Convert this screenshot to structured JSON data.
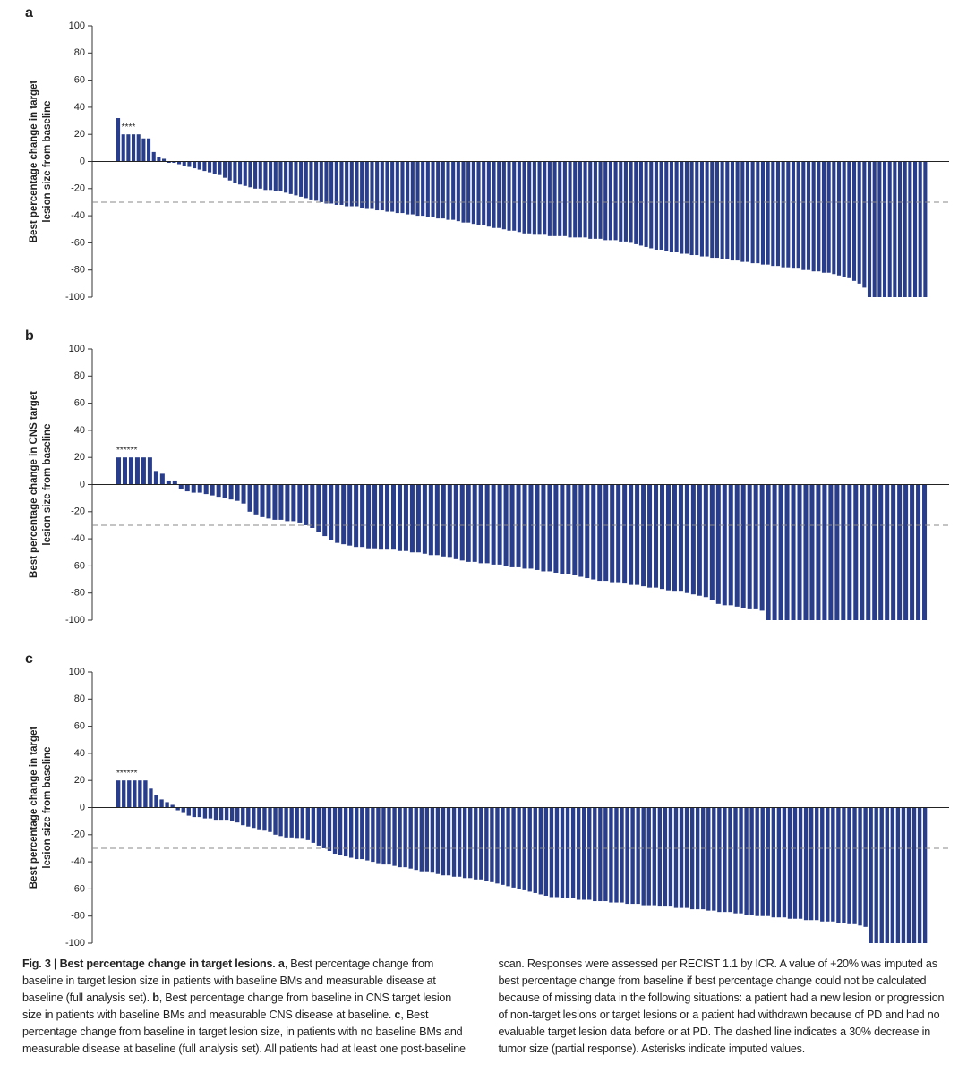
{
  "chart_data": [
    {
      "type": "bar",
      "panel": "a",
      "ylabel": [
        "Best percentage change in target",
        "lesion size from baseline"
      ],
      "annotation": "****",
      "color": "#283d8b",
      "ylim": [
        -100,
        100
      ],
      "yticks": [
        100,
        80,
        60,
        40,
        20,
        0,
        -20,
        -40,
        -60,
        -80,
        -100
      ],
      "reference_line": -30,
      "values": [
        32,
        20,
        20,
        20,
        20,
        17,
        17,
        7,
        3,
        2,
        -1,
        -1,
        -2,
        -3,
        -4,
        -5,
        -6,
        -7,
        -8,
        -9,
        -10,
        -12,
        -14,
        -16,
        -17,
        -18,
        -19,
        -20,
        -20,
        -21,
        -21,
        -22,
        -22,
        -23,
        -24,
        -25,
        -26,
        -27,
        -28,
        -29,
        -30,
        -31,
        -31,
        -32,
        -32,
        -33,
        -33,
        -33,
        -34,
        -35,
        -35,
        -36,
        -36,
        -37,
        -37,
        -38,
        -38,
        -39,
        -39,
        -40,
        -40,
        -41,
        -41,
        -42,
        -42,
        -43,
        -43,
        -44,
        -45,
        -45,
        -46,
        -47,
        -47,
        -48,
        -49,
        -49,
        -50,
        -51,
        -51,
        -52,
        -53,
        -53,
        -54,
        -54,
        -54,
        -55,
        -55,
        -55,
        -55,
        -56,
        -56,
        -56,
        -56,
        -57,
        -57,
        -57,
        -58,
        -58,
        -58,
        -59,
        -59,
        -60,
        -61,
        -62,
        -63,
        -64,
        -65,
        -65,
        -66,
        -67,
        -67,
        -68,
        -68,
        -69,
        -69,
        -70,
        -70,
        -71,
        -71,
        -72,
        -72,
        -73,
        -73,
        -74,
        -74,
        -75,
        -75,
        -76,
        -76,
        -77,
        -77,
        -78,
        -78,
        -79,
        -79,
        -80,
        -80,
        -81,
        -81,
        -82,
        -82,
        -83,
        -84,
        -85,
        -86,
        -88,
        -90,
        -93,
        -100,
        -100,
        -100,
        -100,
        -100,
        -100,
        -100,
        -100,
        -100,
        -100,
        -100,
        -100
      ]
    },
    {
      "type": "bar",
      "panel": "b",
      "ylabel": [
        "Best percentage change in CNS target",
        "lesion size from baseline"
      ],
      "annotation": "******",
      "color": "#283d8b",
      "ylim": [
        -100,
        100
      ],
      "yticks": [
        100,
        80,
        60,
        40,
        20,
        0,
        -20,
        -40,
        -60,
        -80,
        -100
      ],
      "reference_line": -30,
      "values": [
        20,
        20,
        20,
        20,
        20,
        20,
        10,
        8,
        3,
        3,
        -3,
        -5,
        -6,
        -6,
        -7,
        -8,
        -9,
        -10,
        -11,
        -12,
        -14,
        -20,
        -22,
        -24,
        -25,
        -26,
        -26,
        -27,
        -27,
        -28,
        -30,
        -32,
        -35,
        -38,
        -41,
        -43,
        -44,
        -45,
        -46,
        -46,
        -47,
        -47,
        -48,
        -48,
        -48,
        -49,
        -49,
        -50,
        -50,
        -51,
        -52,
        -52,
        -53,
        -54,
        -55,
        -56,
        -57,
        -57,
        -58,
        -58,
        -59,
        -59,
        -60,
        -61,
        -61,
        -62,
        -62,
        -63,
        -64,
        -64,
        -65,
        -66,
        -66,
        -67,
        -68,
        -69,
        -70,
        -71,
        -71,
        -72,
        -72,
        -73,
        -74,
        -74,
        -75,
        -76,
        -76,
        -77,
        -78,
        -79,
        -79,
        -80,
        -81,
        -82,
        -83,
        -85,
        -88,
        -89,
        -89,
        -90,
        -91,
        -92,
        -92,
        -93,
        -100,
        -100,
        -100,
        -100,
        -100,
        -100,
        -100,
        -100,
        -100,
        -100,
        -100,
        -100,
        -100,
        -100,
        -100,
        -100,
        -100,
        -100,
        -100,
        -100,
        -100,
        -100,
        -100,
        -100,
        -100,
        -100
      ]
    },
    {
      "type": "bar",
      "panel": "c",
      "ylabel": [
        "Best percentage change in target",
        "lesion size from baseline"
      ],
      "annotation": "******",
      "color": "#283d8b",
      "ylim": [
        -100,
        100
      ],
      "yticks": [
        100,
        80,
        60,
        40,
        20,
        0,
        -20,
        -40,
        -60,
        -80,
        -100
      ],
      "reference_line": -30,
      "values": [
        20,
        20,
        20,
        20,
        20,
        20,
        14,
        9,
        6,
        4,
        2,
        -2,
        -4,
        -6,
        -7,
        -7,
        -8,
        -8,
        -9,
        -9,
        -9,
        -10,
        -11,
        -13,
        -14,
        -15,
        -16,
        -17,
        -18,
        -20,
        -21,
        -22,
        -22,
        -23,
        -23,
        -24,
        -26,
        -28,
        -30,
        -32,
        -34,
        -35,
        -36,
        -37,
        -38,
        -38,
        -39,
        -40,
        -41,
        -42,
        -42,
        -43,
        -44,
        -44,
        -45,
        -46,
        -47,
        -47,
        -48,
        -49,
        -50,
        -50,
        -51,
        -51,
        -52,
        -52,
        -53,
        -53,
        -54,
        -55,
        -56,
        -57,
        -58,
        -59,
        -60,
        -61,
        -62,
        -63,
        -64,
        -65,
        -66,
        -66,
        -67,
        -67,
        -67,
        -68,
        -68,
        -68,
        -69,
        -69,
        -69,
        -70,
        -70,
        -70,
        -71,
        -71,
        -71,
        -72,
        -72,
        -72,
        -73,
        -73,
        -73,
        -74,
        -74,
        -74,
        -75,
        -75,
        -75,
        -76,
        -76,
        -77,
        -77,
        -77,
        -78,
        -78,
        -79,
        -79,
        -80,
        -80,
        -80,
        -81,
        -81,
        -81,
        -82,
        -82,
        -82,
        -83,
        -83,
        -83,
        -84,
        -84,
        -84,
        -85,
        -85,
        -86,
        -86,
        -87,
        -88,
        -100,
        -100,
        -100,
        -100,
        -100,
        -100,
        -100,
        -100,
        -100,
        -100,
        -100
      ]
    }
  ],
  "caption": {
    "label": "Fig. 3 | Best percentage change in target lesions.",
    "parts": [
      {
        "key": "a",
        "text": ", Best percentage change from baseline in target lesion size in patients with baseline BMs and measurable disease at baseline (full analysis set). "
      },
      {
        "key": "b",
        "text": ", Best percentage change from baseline in CNS target lesion size in patients with baseline BMs and measurable CNS disease at baseline. "
      },
      {
        "key": "c",
        "text": ", Best percentage change from baseline in target lesion size, in patients with no baseline BMs and measurable disease at baseline (full analysis set). All patients had at least one post-baseline scan. Responses were assessed per RECIST 1.1 by ICR. A value of +20% was imputed as best percentage change from baseline if best percentage change could not be calculated because of missing data in the following situations: a patient had a new lesion or progression of non-target lesions or target lesions or a patient had withdrawn because of PD and had no evaluable target lesion data before or at PD. The dashed line indicates a 30% decrease in tumor size (partial response). Asterisks indicate imputed values."
      }
    ]
  }
}
